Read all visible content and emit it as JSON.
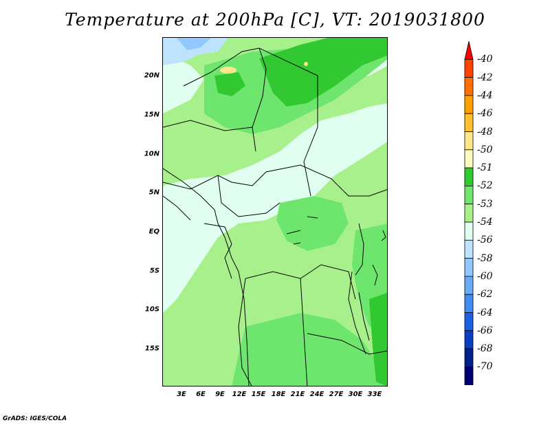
{
  "title": "Temperature at 200hPa [C], VT: 2019031800",
  "footer": "GrADS: IGES/COLA",
  "lat_labels": [
    "20N",
    "15N",
    "10N",
    "5N",
    "EQ",
    "5S",
    "10S",
    "15S"
  ],
  "lon_labels": [
    "3E",
    "6E",
    "9E",
    "12E",
    "15E",
    "18E",
    "21E",
    "24E",
    "27E",
    "30E",
    "33E"
  ],
  "colorbar": {
    "labels": [
      "-40",
      "-42",
      "-44",
      "-46",
      "-48",
      "-50",
      "-51",
      "-52",
      "-53",
      "-54",
      "-56",
      "-58",
      "-60",
      "-62",
      "-64",
      "-66",
      "-68",
      "-70"
    ],
    "colors": [
      "#ff0000",
      "#ff4400",
      "#ff7000",
      "#ffa000",
      "#ffc030",
      "#ffe88c",
      "#fffac0",
      "#32c832",
      "#6ee66e",
      "#a8f08c",
      "#e0fff0",
      "#bde3ff",
      "#92c8ff",
      "#6aabf5",
      "#418cf0",
      "#1a60e0",
      "#0a40c0",
      "#00208a",
      "#000070",
      "#d8d8f8"
    ]
  },
  "chart_data": {
    "type": "heatmap",
    "variable": "Temperature at 200hPa [C]",
    "valid_time": "2019031800",
    "lon_range": [
      "3E",
      "33E"
    ],
    "lat_range": [
      "15S",
      "20N"
    ],
    "dominant_values": [
      "-54",
      "-53",
      "-52",
      "-51"
    ]
  }
}
